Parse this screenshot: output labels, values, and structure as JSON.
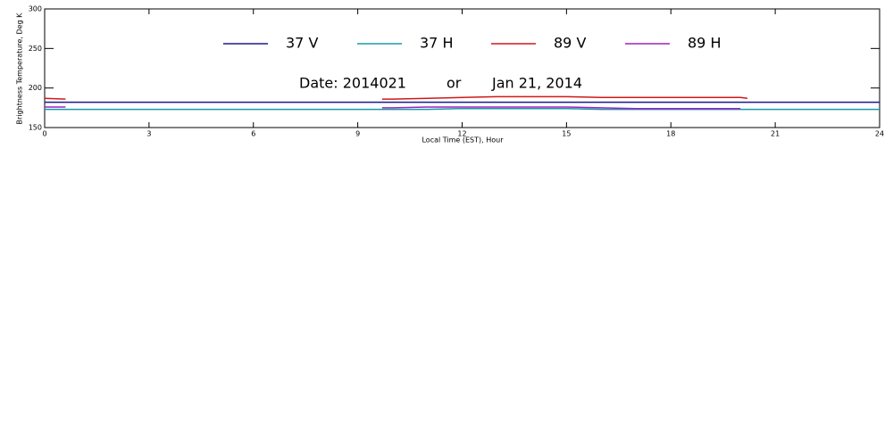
{
  "chart_data": {
    "type": "line",
    "x_label": "Local Time (EST), Hour",
    "y_label": "Brightness Temperature, Deg K",
    "annotations": [
      "Date: 2014021",
      "or",
      "Jan 21, 2014"
    ],
    "x": [
      0,
      0.6,
      1,
      2,
      3,
      4,
      5,
      6,
      7,
      8,
      9,
      9.7,
      10,
      11,
      12,
      13,
      14,
      15,
      16,
      17,
      18,
      19,
      20,
      20.2,
      21,
      22,
      23,
      24
    ],
    "series": [
      {
        "name": "37 V",
        "color": "#1a1a8c",
        "values": [
          182,
          182,
          182,
          182,
          182,
          182,
          182,
          182,
          182,
          182,
          182,
          182,
          182,
          182,
          182,
          182,
          182,
          182,
          182,
          182,
          182,
          182,
          182,
          182,
          182,
          182,
          182,
          182
        ]
      },
      {
        "name": "37 H",
        "color": "#1a9aa8",
        "values": [
          173,
          173,
          173,
          173,
          173,
          173,
          173,
          173,
          173,
          173,
          173,
          173,
          173,
          173,
          174,
          174,
          174,
          174,
          173,
          173,
          173,
          173,
          173,
          173,
          173,
          173,
          173,
          173
        ]
      },
      {
        "name": "89 V",
        "color": "#d01818",
        "values": [
          187,
          186,
          null,
          null,
          null,
          null,
          null,
          null,
          null,
          null,
          null,
          186,
          186,
          187,
          188,
          189,
          189,
          189,
          188,
          188,
          188,
          188,
          188,
          187,
          null,
          null,
          null,
          null
        ]
      },
      {
        "name": "89 H",
        "color": "#a020c0",
        "values": [
          176,
          176,
          null,
          null,
          null,
          null,
          null,
          null,
          null,
          null,
          null,
          175,
          175,
          176,
          176,
          176,
          176,
          176,
          175,
          174,
          174,
          174,
          174,
          null,
          null,
          null,
          null,
          null
        ]
      }
    ],
    "xlim": [
      0,
      24
    ],
    "xticks": [
      0,
      3,
      6,
      9,
      12,
      15,
      18,
      21,
      24
    ],
    "ylim": [
      150,
      300
    ],
    "yticks": [
      150,
      200,
      250,
      300
    ]
  }
}
